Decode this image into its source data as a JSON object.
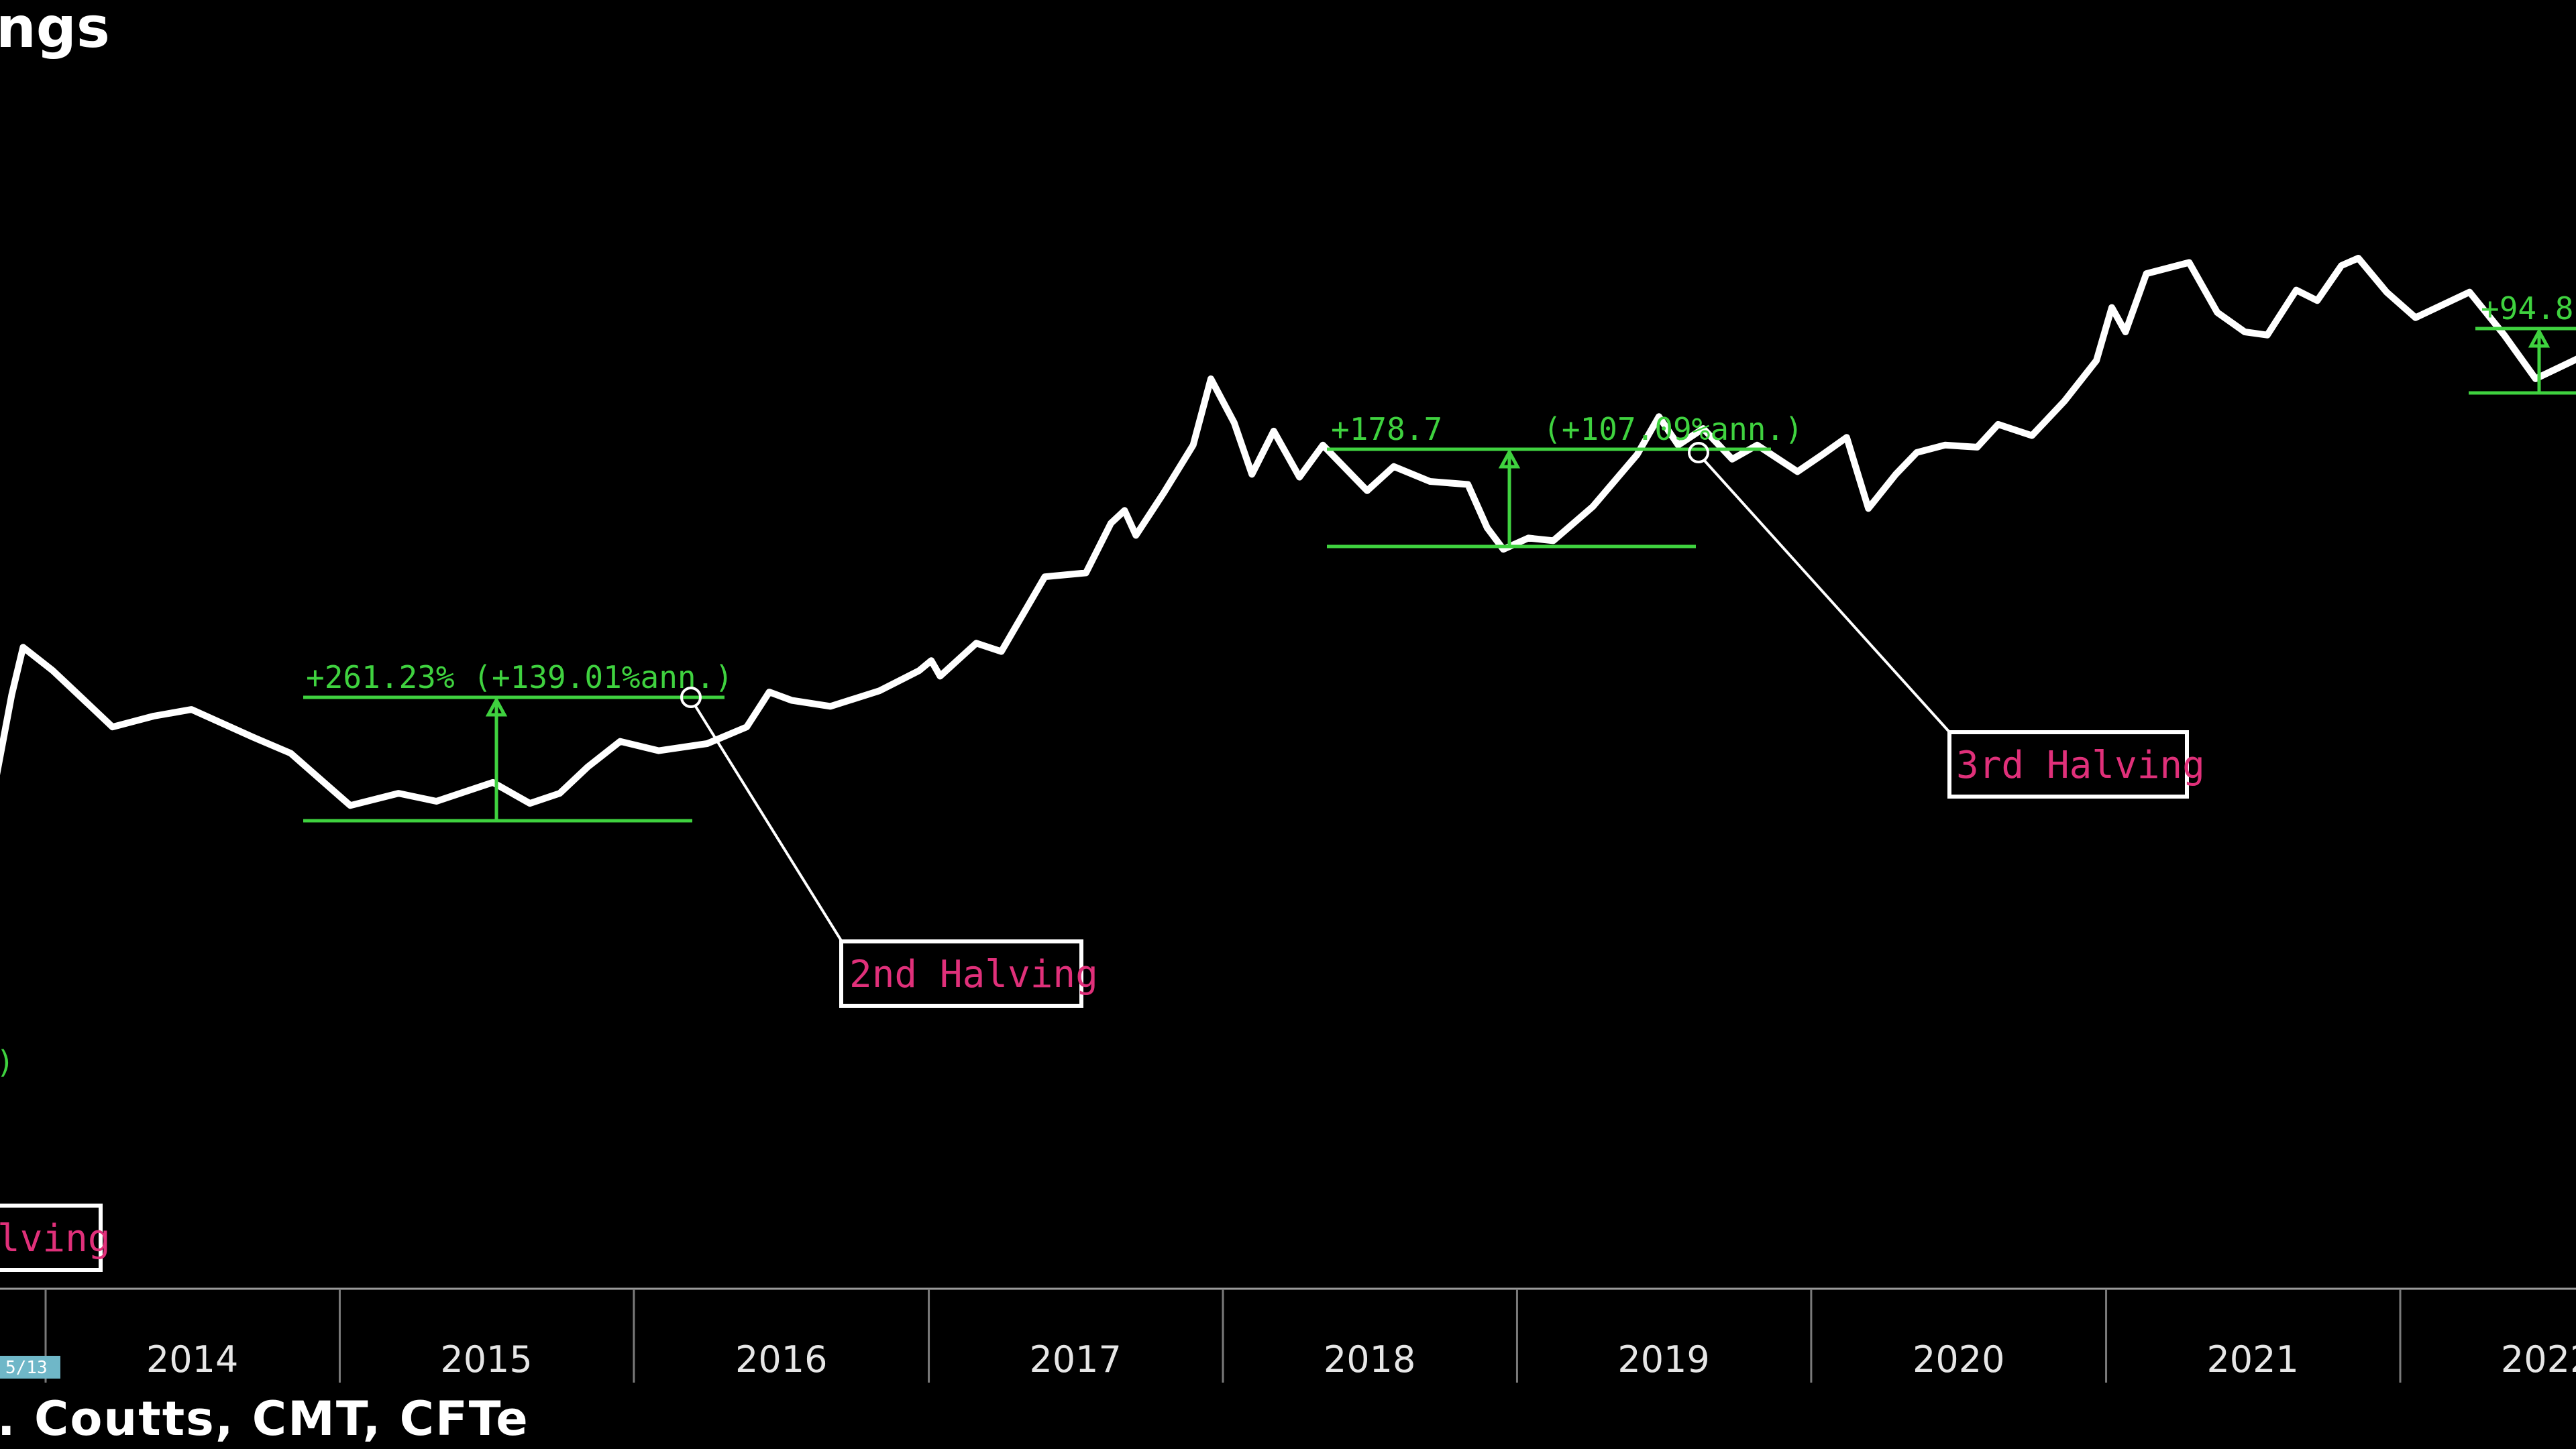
{
  "title": "ngs",
  "source": ". Coutts, CMT, CFTe",
  "colors": {
    "background": "#000000",
    "price_line": "#ffffff",
    "annotation": "#3fd23f",
    "halving_label": "#e0307a"
  },
  "chart_data": {
    "type": "line",
    "title": "ngs",
    "y_scale": "log",
    "grid": false,
    "x_ticks": [
      "2014",
      "2015",
      "2016",
      "2017",
      "2018",
      "2019",
      "2020",
      "2021",
      "2022"
    ],
    "series": [
      {
        "x": [
          "2013-10-15",
          "2013-11-20",
          "2013-12-04",
          "2014-01-10",
          "2014-02-20",
          "2014-03-25",
          "2014-05-15",
          "2014-07-01",
          "2014-09-15",
          "2014-11-01",
          "2015-01-14",
          "2015-03-15",
          "2015-05-01",
          "2015-07-10",
          "2015-08-25",
          "2015-10-01",
          "2015-11-05",
          "2015-12-15",
          "2016-02-01",
          "2016-04-01",
          "2016-05-20",
          "2016-06-17",
          "2016-07-15",
          "2016-09-01",
          "2016-11-01",
          "2016-12-20",
          "2017-01-04",
          "2017-01-15",
          "2017-03-01",
          "2017-04-01",
          "2017-05-25",
          "2017-07-15",
          "2017-08-15",
          "2017-09-01",
          "2017-09-15",
          "2017-10-20",
          "2017-11-25",
          "2017-12-17",
          "2018-01-15",
          "2018-02-06",
          "2018-03-05",
          "2018-04-06",
          "2018-05-05",
          "2018-06-29",
          "2018-08-01",
          "2018-09-15",
          "2018-11-01",
          "2018-11-25",
          "2018-12-15",
          "2019-01-15",
          "2019-02-15",
          "2019-04-05",
          "2019-05-30",
          "2019-06-26",
          "2019-07-20",
          "2019-08-20",
          "2019-09-25",
          "2019-10-26",
          "2019-12-15",
          "2020-01-15",
          "2020-02-14",
          "2020-03-12",
          "2020-04-15",
          "2020-05-11",
          "2020-06-15",
          "2020-07-25",
          "2020-08-20",
          "2020-10-01",
          "2020-11-10",
          "2020-12-20",
          "2021-01-08",
          "2021-01-25",
          "2021-02-20",
          "2021-04-14",
          "2021-05-19",
          "2021-06-22",
          "2021-07-20",
          "2021-08-25",
          "2021-09-20",
          "2021-10-20",
          "2021-11-10",
          "2021-12-15",
          "2022-01-20",
          "2022-03-28",
          "2022-05-10",
          "2022-06-18",
          "2022-08-15",
          "2022-09-20",
          "2022-11-09",
          "2022-12-31",
          "2023-01-15",
          "2023-02-20",
          "2023-04-01",
          "2023-05-15",
          "2023-06-30"
        ],
        "values": [
          140,
          700,
          1150,
          900,
          650,
          500,
          560,
          600,
          450,
          380,
          220,
          250,
          230,
          280,
          225,
          250,
          330,
          430,
          390,
          420,
          500,
          720,
          660,
          620,
          730,
          900,
          1000,
          850,
          1200,
          1100,
          2400,
          2500,
          4200,
          4800,
          3700,
          5800,
          9500,
          19000,
          12000,
          7000,
          11000,
          6800,
          9500,
          5900,
          7600,
          6500,
          6300,
          4000,
          3200,
          3600,
          3500,
          5000,
          8600,
          12800,
          9500,
          11300,
          8200,
          9500,
          7200,
          8600,
          10300,
          4900,
          7000,
          8800,
          9500,
          9300,
          11800,
          10500,
          15000,
          23000,
          40000,
          31000,
          57000,
          64000,
          38000,
          31000,
          30000,
          48000,
          43000,
          62000,
          67000,
          47000,
          36000,
          47000,
          30000,
          19000,
          24000,
          19000,
          16000,
          16500,
          21000,
          24000,
          28500,
          27000,
          30500
        ]
      }
    ],
    "annotations": [
      {
        "label": "+261.23% (+139.01%ann.)"
      },
      {
        "label": "+178.7",
        "label_suffix": "(+107.09%ann.)"
      },
      {
        "label": "+94.8"
      }
    ],
    "halvings": [
      {
        "label": "lving",
        "date": "2012-11-28"
      },
      {
        "label": "2nd Halving",
        "date": "2016-07-09"
      },
      {
        "label": "3rd Halving",
        "date": "2020-05-11"
      }
    ],
    "edge_labels": [
      ")",
      "5/13"
    ]
  }
}
